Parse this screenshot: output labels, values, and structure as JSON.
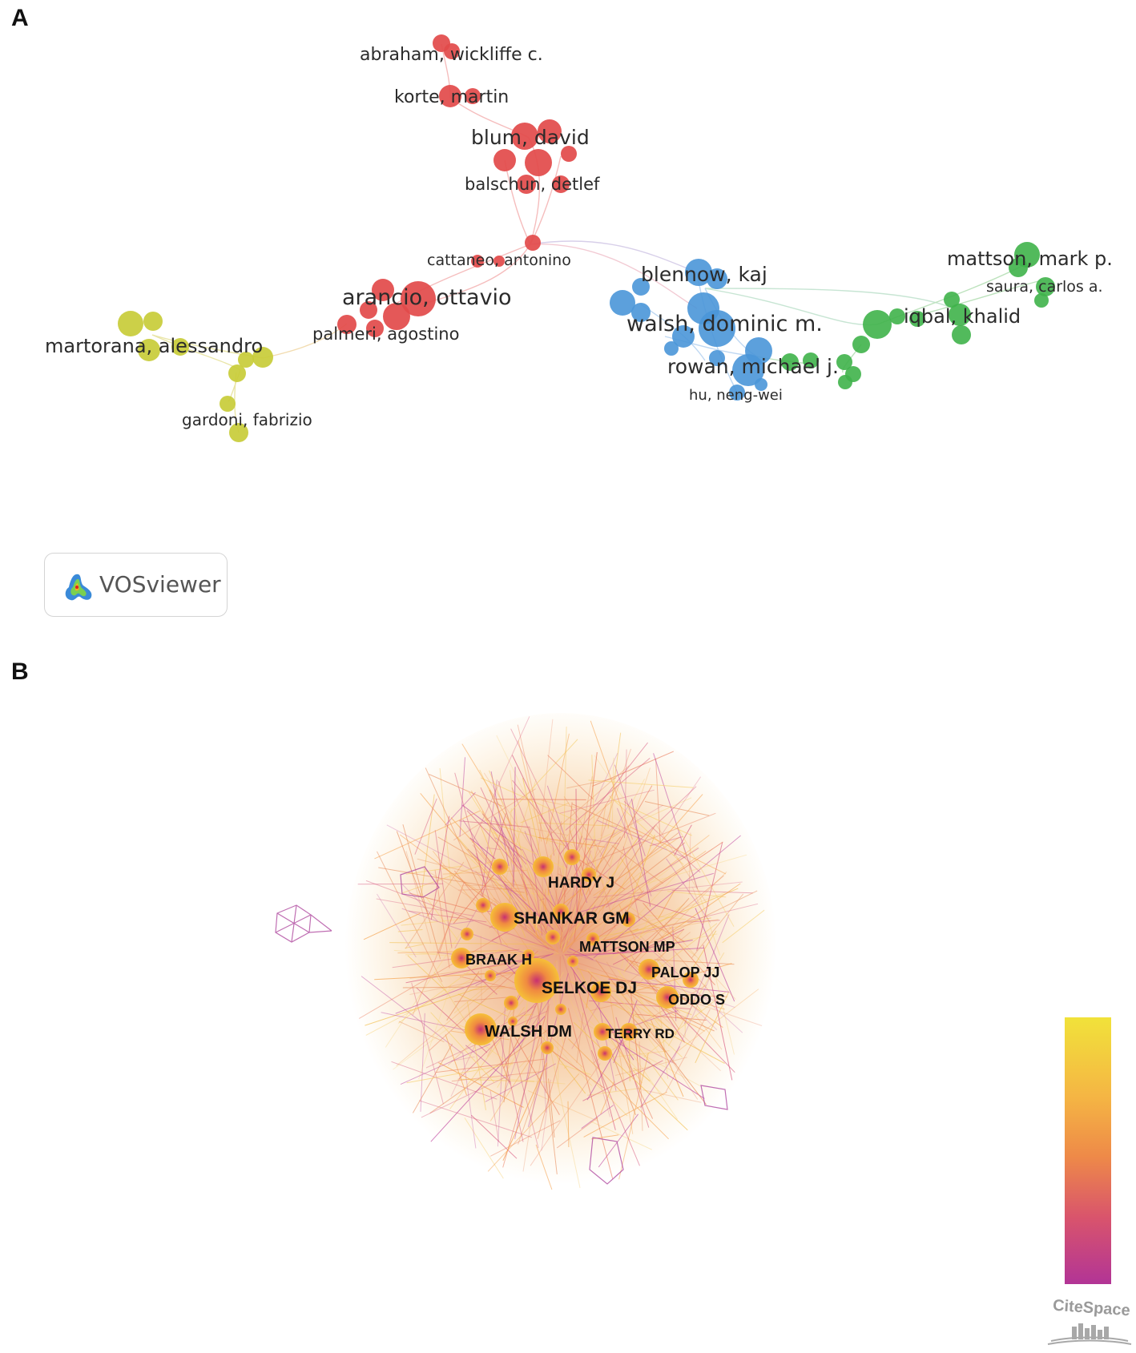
{
  "panel_a": {
    "letter": "A",
    "tool_name": "VOSviewer",
    "clusters": {
      "red": "#e24a4a",
      "blue": "#4a96d8",
      "green": "#3fb24a",
      "yellow": "#c8cc38"
    },
    "labels": {
      "abraham": "abraham, wickliffe c.",
      "korte": "korte, martin",
      "blum": "blum, david",
      "balschun": "balschun, detlef",
      "cattaneo": "cattaneo, antonino",
      "arancio": "arancio, ottavio",
      "palmeri": "palmeri, agostino",
      "martorana": "martorana, alessandro",
      "gardoni": "gardoni, fabrizio",
      "blennow": "blennow, kaj",
      "walsh": "walsh, dominic m.",
      "rowan": "rowan, michael j.",
      "hu": "hu, neng-wei",
      "mattson": "mattson, mark p.",
      "saura": "saura, carlos a.",
      "iqbal": "iqbal, khalid"
    }
  },
  "panel_b": {
    "letter": "B",
    "tool_name": "CiteSpace",
    "labels": {
      "hardy": "HARDY J",
      "shankar": "SHANKAR GM",
      "mattson": "MATTSON MP",
      "braak": "BRAAK H",
      "palop": "PALOP JJ",
      "selkoe": "SELKOE DJ",
      "oddo": "ODDO S",
      "walsh": "WALSH DM",
      "terry": "TERRY RD"
    },
    "colorbar": {
      "top": "#f1e23a",
      "bottom": "#b23496"
    }
  }
}
